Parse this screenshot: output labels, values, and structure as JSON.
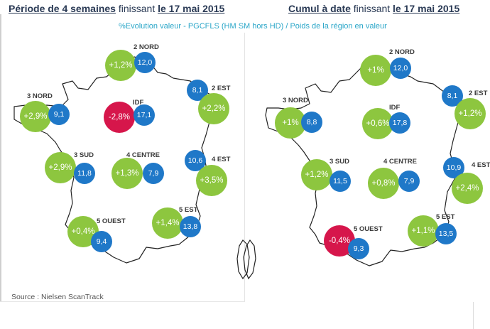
{
  "header_left": {
    "title_underlined": "Période de 4 semaines",
    "title_middle": " finissant ",
    "title_date": "le 17 mai 2015"
  },
  "header_right": {
    "title_underlined": "Cumul à date",
    "title_middle": " finissant ",
    "title_date": "le 17 mai 2015"
  },
  "subtitle": "%Evolution valeur - PGCFLS (HM SM hors HD) / Poids de la région en valeur",
  "source": "Source : Nielsen ScanTrack",
  "colors": {
    "positive": "#8dc63f",
    "negative": "#d6164b",
    "weight": "#1f78c8",
    "title": "#2a3a55",
    "subtitle": "#2aa6c8"
  },
  "left_map": {
    "nord2": {
      "label": "2 NORD",
      "evolution": "+1,2%",
      "weight": "12,0"
    },
    "est2": {
      "label": "2 EST",
      "evolution": "+2,2%",
      "weight": "8,1"
    },
    "nord3": {
      "label": "3 NORD",
      "evolution": "+2,9%",
      "weight": "9,1"
    },
    "idf": {
      "label": "IDF",
      "evolution": "-2,8%",
      "weight": "17,1"
    },
    "sud3": {
      "label": "3 SUD",
      "evolution": "+2,9%",
      "weight": "11,8"
    },
    "centre4": {
      "label": "4 CENTRE",
      "evolution": "+1,3%",
      "weight": "7,9"
    },
    "est4": {
      "label": "4 EST",
      "evolution": "+3,5%",
      "weight": "10,6"
    },
    "ouest5": {
      "label": "5 OUEST",
      "evolution": "+0,4%",
      "weight": "9,4"
    },
    "est5": {
      "label": "5 EST",
      "evolution": "+1,4%",
      "weight": "13,8"
    }
  },
  "right_map": {
    "nord2": {
      "label": "2 NORD",
      "evolution": "+1%",
      "weight": "12,0"
    },
    "est2": {
      "label": "2 EST",
      "evolution": "+1,2%",
      "weight": "8,1"
    },
    "nord3": {
      "label": "3 NORD",
      "evolution": "+1%",
      "weight": "8,8"
    },
    "idf": {
      "label": "IDF",
      "evolution": "+0,6%",
      "weight": "17,8"
    },
    "sud3": {
      "label": "3 SUD",
      "evolution": "+1,2%",
      "weight": "11,5"
    },
    "centre4": {
      "label": "4 CENTRE",
      "evolution": "+0,8%",
      "weight": "7,9"
    },
    "est4": {
      "label": "4 EST",
      "evolution": "+2,4%",
      "weight": "10,9"
    },
    "ouest5": {
      "label": "5 OUEST",
      "evolution": "-0,4%",
      "weight": "9,3"
    },
    "est5": {
      "label": "5 EST",
      "evolution": "+1,1%",
      "weight": "13,5"
    }
  }
}
